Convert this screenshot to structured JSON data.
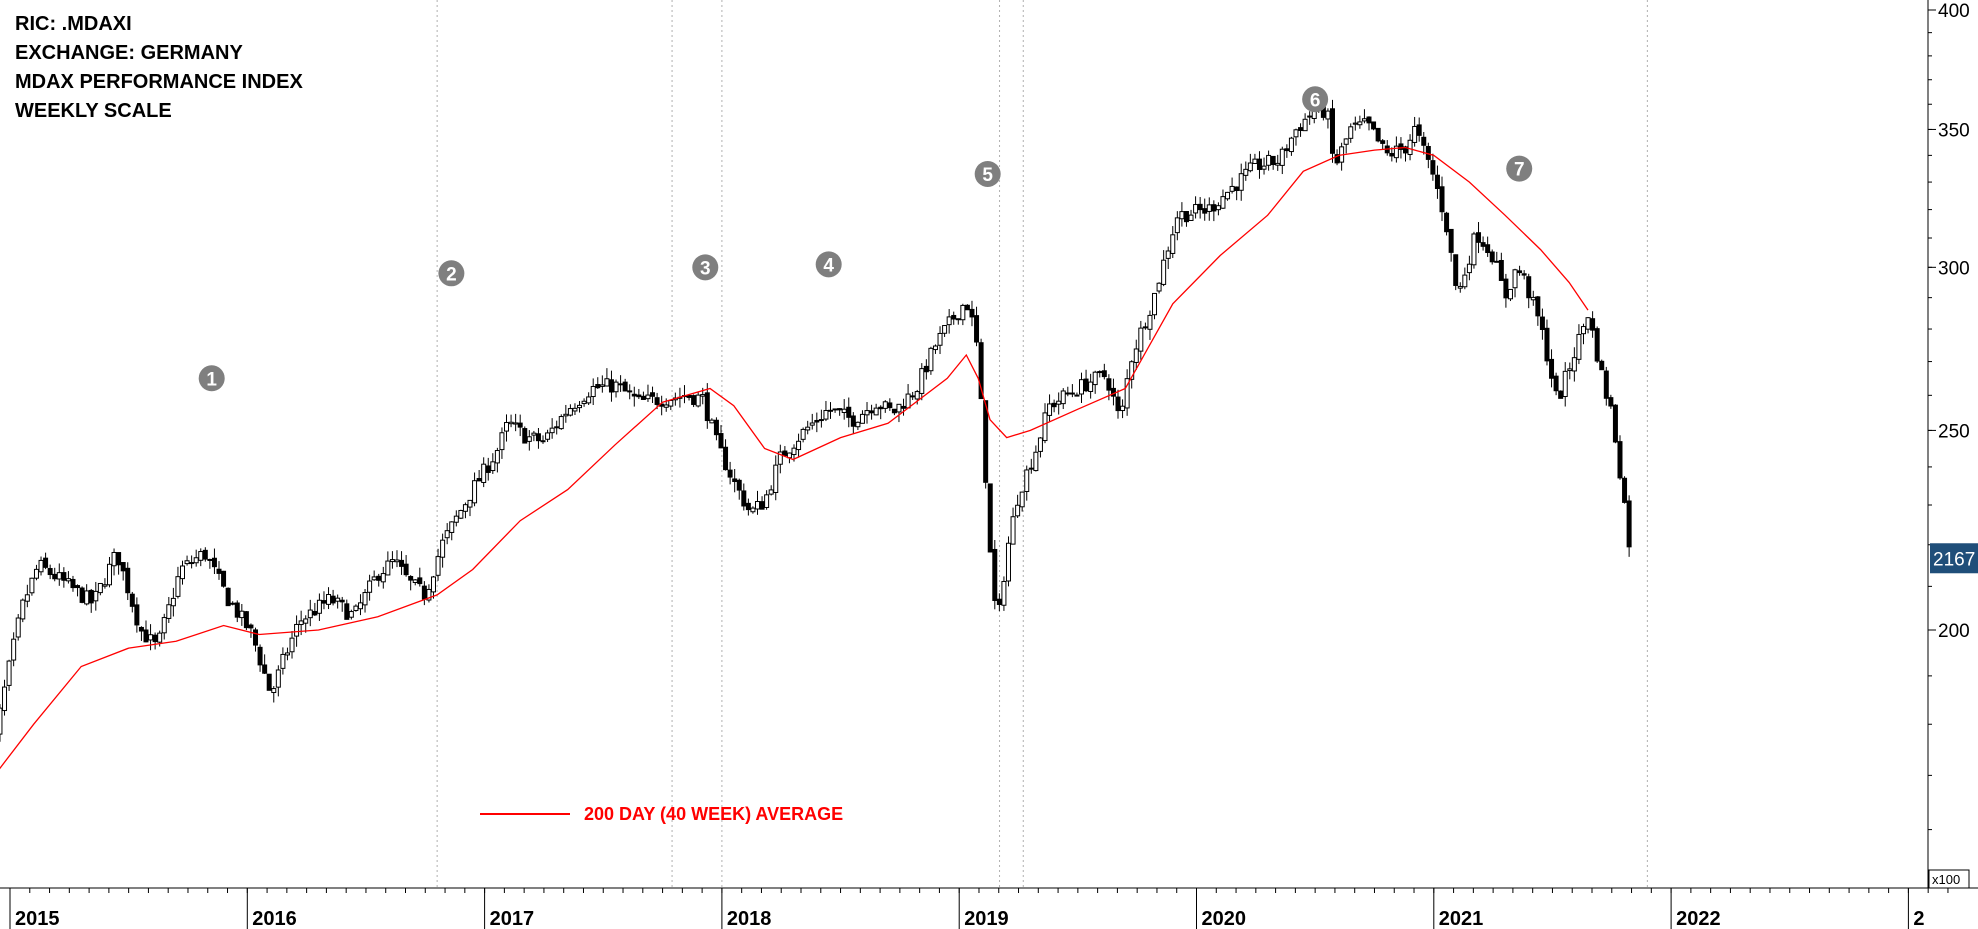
{
  "header": {
    "lines": [
      "RIC: .MDAXI",
      "EXCHANGE: GERMANY",
      "MDAX PERFORMANCE INDEX",
      "WEEKLY SCALE"
    ]
  },
  "legend": {
    "label": "200 DAY (40 WEEK) AVERAGE",
    "color": "#ff0000"
  },
  "axis": {
    "multiplier": "x100",
    "last_value": "2167",
    "last_value_bg": "#1f4e79"
  },
  "chart_data": {
    "type": "candlestick",
    "scale": "log",
    "y_axis": {
      "ticks": [
        200,
        250,
        300,
        350,
        400
      ],
      "range": [
        160,
        405
      ],
      "unit_multiplier": "x100"
    },
    "x_axis": {
      "ticks": [
        "2015",
        "2016",
        "2017",
        "2018",
        "2019",
        "2020",
        "2021",
        "2022",
        "2"
      ],
      "range": [
        2015.0,
        2022.8
      ]
    },
    "pattern_markers": [
      {
        "label": "1",
        "x": 2015.85,
        "y": 265
      },
      {
        "label": "2",
        "x": 2016.86,
        "y": 298
      },
      {
        "label": "3",
        "x": 2017.93,
        "y": 300
      },
      {
        "label": "4",
        "x": 2018.45,
        "y": 301
      },
      {
        "label": "5",
        "x": 2019.12,
        "y": 333
      },
      {
        "label": "6",
        "x": 2020.5,
        "y": 362
      },
      {
        "label": "7",
        "x": 2021.36,
        "y": 335
      }
    ],
    "vertical_lines": [
      2016.8,
      2017.79,
      2018.0,
      2019.17,
      2019.27,
      2021.9
    ],
    "price_anchors": [
      [
        2014.9,
        168
      ],
      [
        2015.05,
        205
      ],
      [
        2015.12,
        215
      ],
      [
        2015.2,
        212
      ],
      [
        2015.35,
        206
      ],
      [
        2015.45,
        218
      ],
      [
        2015.55,
        200
      ],
      [
        2015.62,
        196
      ],
      [
        2015.72,
        214
      ],
      [
        2015.82,
        218
      ],
      [
        2015.92,
        207
      ],
      [
        2016.02,
        199
      ],
      [
        2016.1,
        186
      ],
      [
        2016.15,
        193
      ],
      [
        2016.22,
        202
      ],
      [
        2016.35,
        207
      ],
      [
        2016.45,
        203
      ],
      [
        2016.55,
        213
      ],
      [
        2016.62,
        216
      ],
      [
        2016.68,
        211
      ],
      [
        2016.75,
        208
      ],
      [
        2016.82,
        220
      ],
      [
        2016.95,
        234
      ],
      [
        2017.05,
        244
      ],
      [
        2017.1,
        252
      ],
      [
        2017.18,
        248
      ],
      [
        2017.25,
        247
      ],
      [
        2017.35,
        256
      ],
      [
        2017.45,
        262
      ],
      [
        2017.55,
        263
      ],
      [
        2017.65,
        258
      ],
      [
        2017.75,
        259
      ],
      [
        2017.85,
        260
      ],
      [
        2017.92,
        259
      ],
      [
        2017.98,
        246
      ],
      [
        2018.05,
        236
      ],
      [
        2018.12,
        228
      ],
      [
        2018.18,
        231
      ],
      [
        2018.25,
        243
      ],
      [
        2018.35,
        250
      ],
      [
        2018.45,
        256
      ],
      [
        2018.55,
        253
      ],
      [
        2018.65,
        258
      ],
      [
        2018.72,
        255
      ],
      [
        2018.82,
        262
      ],
      [
        2018.9,
        275
      ],
      [
        2018.98,
        284
      ],
      [
        2019.03,
        289
      ],
      [
        2019.07,
        278
      ],
      [
        2019.1,
        250
      ],
      [
        2019.13,
        218
      ],
      [
        2019.16,
        200
      ],
      [
        2019.2,
        218
      ],
      [
        2019.25,
        233
      ],
      [
        2019.32,
        244
      ],
      [
        2019.38,
        257
      ],
      [
        2019.45,
        260
      ],
      [
        2019.55,
        264
      ],
      [
        2019.62,
        266
      ],
      [
        2019.68,
        252
      ],
      [
        2019.72,
        270
      ],
      [
        2019.82,
        290
      ],
      [
        2019.92,
        318
      ],
      [
        2020.05,
        320
      ],
      [
        2020.15,
        328
      ],
      [
        2020.25,
        336
      ],
      [
        2020.35,
        338
      ],
      [
        2020.42,
        350
      ],
      [
        2020.5,
        358
      ],
      [
        2020.55,
        357
      ],
      [
        2020.58,
        335
      ],
      [
        2020.65,
        350
      ],
      [
        2020.72,
        352
      ],
      [
        2020.8,
        340
      ],
      [
        2020.88,
        343
      ],
      [
        2020.92,
        350
      ],
      [
        2021.0,
        332
      ],
      [
        2021.05,
        316
      ],
      [
        2021.1,
        290
      ],
      [
        2021.18,
        312
      ],
      [
        2021.25,
        304
      ],
      [
        2021.3,
        290
      ],
      [
        2021.35,
        300
      ],
      [
        2021.38,
        296
      ],
      [
        2021.45,
        281
      ],
      [
        2021.52,
        258
      ],
      [
        2021.58,
        270
      ],
      [
        2021.65,
        285
      ],
      [
        2021.72,
        262
      ],
      [
        2021.75,
        255
      ],
      [
        2021.8,
        232
      ],
      [
        2021.83,
        217.5
      ]
    ],
    "moving_average": {
      "label": "200 DAY (40 WEEK) AVERAGE",
      "points": [
        [
          2014.9,
          168
        ],
        [
          2015.1,
          180
        ],
        [
          2015.3,
          192
        ],
        [
          2015.5,
          196
        ],
        [
          2015.7,
          197.5
        ],
        [
          2015.9,
          201
        ],
        [
          2016.05,
          199
        ],
        [
          2016.3,
          200
        ],
        [
          2016.55,
          203
        ],
        [
          2016.8,
          208
        ],
        [
          2016.95,
          214
        ],
        [
          2017.15,
          226
        ],
        [
          2017.35,
          234
        ],
        [
          2017.55,
          246
        ],
        [
          2017.75,
          258
        ],
        [
          2017.95,
          262
        ],
        [
          2018.05,
          257
        ],
        [
          2018.18,
          245
        ],
        [
          2018.3,
          242
        ],
        [
          2018.5,
          248
        ],
        [
          2018.7,
          252
        ],
        [
          2018.95,
          265
        ],
        [
          2019.03,
          272
        ],
        [
          2019.08,
          265
        ],
        [
          2019.13,
          253
        ],
        [
          2019.2,
          248
        ],
        [
          2019.3,
          250
        ],
        [
          2019.5,
          256
        ],
        [
          2019.7,
          262
        ],
        [
          2019.9,
          288
        ],
        [
          2020.1,
          304
        ],
        [
          2020.3,
          318
        ],
        [
          2020.45,
          334
        ],
        [
          2020.6,
          340
        ],
        [
          2020.75,
          342
        ],
        [
          2020.88,
          343
        ],
        [
          2021.0,
          340
        ],
        [
          2021.15,
          330
        ],
        [
          2021.3,
          318
        ],
        [
          2021.45,
          306
        ],
        [
          2021.57,
          295
        ],
        [
          2021.65,
          286
        ]
      ]
    }
  }
}
